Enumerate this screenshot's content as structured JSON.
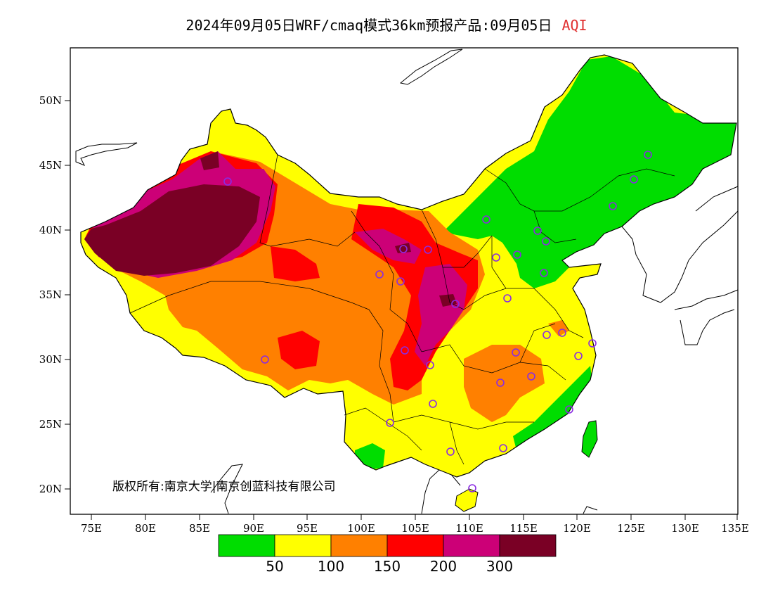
{
  "title": {
    "main": "2024年09月05日WRF/cmaq模式36km预报产品:09月05日",
    "variable": "AQI"
  },
  "axes": {
    "y_ticks": [
      "50N",
      "45N",
      "40N",
      "35N",
      "30N",
      "25N",
      "20N"
    ],
    "x_ticks": [
      "75E",
      "80E",
      "85E",
      "90E",
      "95E",
      "100E",
      "105E",
      "110E",
      "115E",
      "120E",
      "125E",
      "130E",
      "135E"
    ]
  },
  "copyright": "版权所有:南京大学|南京创蓝科技有限公司",
  "legend": {
    "colors": [
      "#00dd00",
      "#ffff00",
      "#ff8000",
      "#ff0000",
      "#cc0077",
      "#7a0025"
    ],
    "labels": [
      "50",
      "100",
      "150",
      "200",
      "300"
    ]
  },
  "colors": {
    "ocean": "#ffffff",
    "border": "#000000",
    "station_marker": "#8a2be2"
  }
}
